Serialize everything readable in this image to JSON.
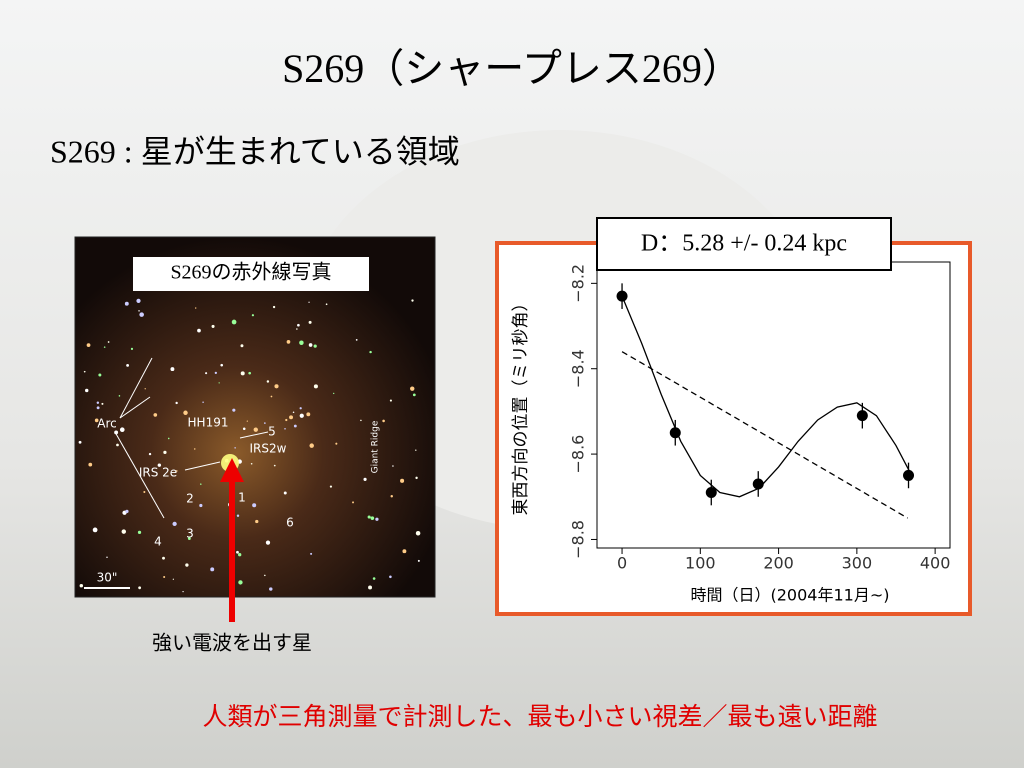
{
  "slide": {
    "title": "S269（シャープレス269）",
    "subtitle": "S269 : 星が生まれている領域",
    "image": {
      "caption": "S269の赤外線写真",
      "labels": [
        "Arc",
        "HH191",
        "5",
        "IRS2w",
        "IRS 2e",
        "2",
        "1",
        "3",
        "4",
        "6",
        "Giant Ridge",
        "30\""
      ]
    },
    "arrow_caption": "強い電波を出す星",
    "footer": "人類が三角測量で計測した、最も小さい視差／最も遠い距離"
  },
  "chart_data": {
    "type": "scatter",
    "title": "D：5.28 +/- 0.24 kpc",
    "x_label": "時間（日）(2004年11月~)",
    "y_label": "東西方向の位置（ミリ秒角）",
    "x": [
      0,
      68,
      114,
      174,
      307,
      366
    ],
    "series": [
      {
        "color": "#000000",
        "values": [
          -8.23,
          -8.55,
          -8.69,
          -8.67,
          -8.51,
          -8.65
        ],
        "errors": [
          0.03,
          0.03,
          0.03,
          0.03,
          0.03,
          0.03
        ]
      }
    ],
    "fit": {
      "x": [
        0,
        25,
        50,
        75,
        100,
        125,
        150,
        175,
        200,
        225,
        250,
        275,
        300,
        325,
        350,
        370
      ],
      "values": [
        -8.23,
        -8.34,
        -8.46,
        -8.57,
        -8.65,
        -8.69,
        -8.7,
        -8.68,
        -8.63,
        -8.57,
        -8.52,
        -8.49,
        -8.48,
        -8.51,
        -8.58,
        -8.65
      ]
    },
    "trend": {
      "x": [
        0,
        365
      ],
      "values": [
        -8.36,
        -8.75
      ]
    },
    "xlim": [
      -32,
      419
    ],
    "ylim": [
      -8.82,
      -8.15
    ],
    "xticks": [
      0,
      100,
      200,
      300,
      400
    ],
    "yticks": [
      {
        "value": -8.2,
        "label": "−8.2"
      },
      {
        "value": -8.4,
        "label": "−8.4"
      },
      {
        "value": -8.6,
        "label": "−8.6"
      },
      {
        "value": -8.8,
        "label": "−8.8"
      }
    ]
  }
}
